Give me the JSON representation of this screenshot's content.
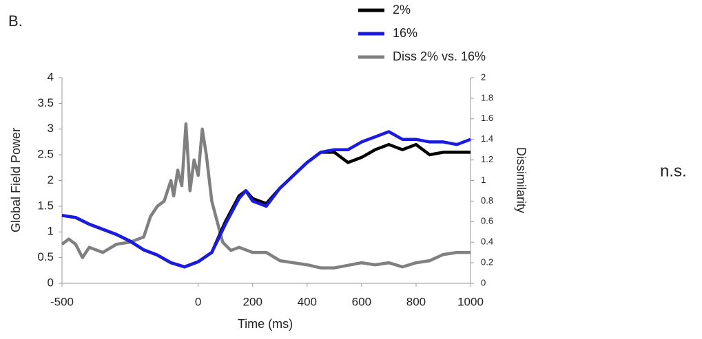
{
  "panel_label": "B.",
  "annotation": "n.s.",
  "chart_data": {
    "type": "line",
    "xlabel": "Time (ms)",
    "ylabel": "Global Field Power",
    "y2label": "Dissimilarity",
    "xlim": [
      -500,
      1000
    ],
    "xticks": [
      -500,
      0,
      200,
      400,
      600,
      800,
      1000
    ],
    "ylim": [
      0,
      4
    ],
    "yticks": [
      0,
      0.5,
      1,
      1.5,
      2,
      2.5,
      3,
      3.5,
      4
    ],
    "y2lim": [
      0,
      2
    ],
    "y2ticks": [
      0,
      0.2,
      0.4,
      0.6,
      0.8,
      1,
      1.2,
      1.4,
      1.6,
      1.8,
      2
    ],
    "x": [
      -500,
      -450,
      -400,
      -350,
      -300,
      -250,
      -200,
      -150,
      -100,
      -50,
      0,
      50,
      100,
      150,
      175,
      200,
      250,
      300,
      350,
      400,
      450,
      500,
      550,
      600,
      650,
      700,
      750,
      800,
      850,
      900,
      950,
      1000
    ],
    "series": [
      {
        "name": "2%",
        "color": "#000000",
        "values": [
          1.32,
          1.28,
          1.15,
          1.05,
          0.95,
          0.82,
          0.65,
          0.55,
          0.4,
          0.32,
          0.42,
          0.6,
          1.2,
          1.7,
          1.8,
          1.65,
          1.55,
          1.85,
          2.1,
          2.35,
          2.55,
          2.55,
          2.35,
          2.45,
          2.6,
          2.7,
          2.6,
          2.7,
          2.5,
          2.55,
          2.55,
          2.55
        ]
      },
      {
        "name": "16%",
        "color": "#1a1ae0",
        "values": [
          1.32,
          1.28,
          1.15,
          1.05,
          0.95,
          0.82,
          0.65,
          0.55,
          0.4,
          0.32,
          0.42,
          0.6,
          1.15,
          1.65,
          1.8,
          1.6,
          1.5,
          1.85,
          2.1,
          2.35,
          2.55,
          2.6,
          2.6,
          2.75,
          2.85,
          2.95,
          2.8,
          2.8,
          2.75,
          2.75,
          2.7,
          2.8
        ]
      },
      {
        "name": "Diss 2% vs. 16%",
        "color": "#808080",
        "axis": "y2",
        "x": [
          -500,
          -475,
          -450,
          -425,
          -400,
          -350,
          -300,
          -250,
          -200,
          -175,
          -150,
          -125,
          -100,
          -90,
          -75,
          -60,
          -45,
          -30,
          -15,
          0,
          15,
          30,
          50,
          70,
          90,
          120,
          150,
          200,
          250,
          300,
          350,
          400,
          450,
          500,
          600,
          650,
          700,
          750,
          800,
          850,
          900,
          950,
          1000
        ],
        "values": [
          0.38,
          0.43,
          0.38,
          0.25,
          0.35,
          0.3,
          0.38,
          0.4,
          0.45,
          0.65,
          0.75,
          0.8,
          1.0,
          0.85,
          1.1,
          0.95,
          1.55,
          0.9,
          1.2,
          1.05,
          1.5,
          1.25,
          0.8,
          0.6,
          0.4,
          0.32,
          0.35,
          0.3,
          0.3,
          0.22,
          0.2,
          0.18,
          0.15,
          0.15,
          0.2,
          0.18,
          0.2,
          0.16,
          0.2,
          0.22,
          0.28,
          0.3,
          0.3
        ]
      }
    ]
  }
}
